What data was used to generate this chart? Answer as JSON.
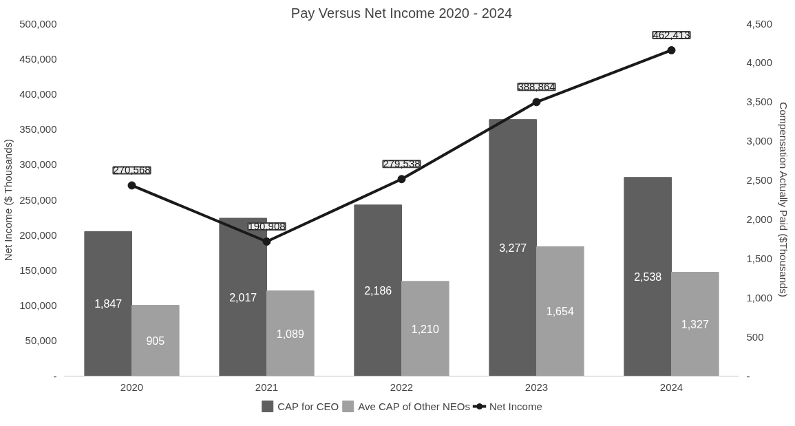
{
  "chart_data": {
    "type": "bar",
    "title": "Pay Versus Net Income 2020 - 2024",
    "ylabel": "Net Income ($ Thousands)",
    "y2label": "Compensation Actually Paid ($Thousands)",
    "categories": [
      "2020",
      "2021",
      "2022",
      "2023",
      "2024"
    ],
    "series": [
      {
        "name": "CAP for CEO",
        "type": "bar",
        "axis": "y2",
        "color": "#5f5f5f",
        "values": [
          1847,
          2017,
          2186,
          3277,
          2538
        ],
        "value_labels": [
          "1,847",
          "2,017",
          "2,186",
          "3,277",
          "2,538"
        ]
      },
      {
        "name": "Ave CAP of Other NEOs",
        "type": "bar",
        "axis": "y2",
        "color": "#a0a0a0",
        "values": [
          905,
          1089,
          1210,
          1654,
          1327
        ],
        "value_labels": [
          "905",
          "1,089",
          "1,210",
          "1,654",
          "1,327"
        ]
      },
      {
        "name": "Net Income",
        "type": "line",
        "color": "#1a1a1a",
        "marker": "circle",
        "values": [
          270568,
          190908,
          279538,
          388864,
          462413
        ],
        "value_labels": [
          "270,568",
          "190,908",
          "279,538",
          "388,864",
          "462,413"
        ]
      }
    ],
    "ylim": [
      0,
      500000
    ],
    "yticks": [
      {
        "value": 0,
        "label": "-"
      },
      {
        "value": 50000,
        "label": "50,000"
      },
      {
        "value": 100000,
        "label": "100,000"
      },
      {
        "value": 150000,
        "label": "150,000"
      },
      {
        "value": 200000,
        "label": "200,000"
      },
      {
        "value": 250000,
        "label": "250,000"
      },
      {
        "value": 300000,
        "label": "300,000"
      },
      {
        "value": 350000,
        "label": "350,000"
      },
      {
        "value": 400000,
        "label": "400,000"
      },
      {
        "value": 450000,
        "label": "450,000"
      },
      {
        "value": 500000,
        "label": "500,000"
      }
    ],
    "y2lim": [
      0,
      4500
    ],
    "y2ticks": [
      {
        "value": 0,
        "label": "-"
      },
      {
        "value": 500,
        "label": "500"
      },
      {
        "value": 1000,
        "label": "1,000"
      },
      {
        "value": 1500,
        "label": "1,500"
      },
      {
        "value": 2000,
        "label": "2,000"
      },
      {
        "value": 2500,
        "label": "2,500"
      },
      {
        "value": 3000,
        "label": "3,000"
      },
      {
        "value": 3500,
        "label": "3,500"
      },
      {
        "value": 4000,
        "label": "4,000"
      },
      {
        "value": 4500,
        "label": "4,500"
      }
    ],
    "legend": "bottom",
    "grid": false
  }
}
